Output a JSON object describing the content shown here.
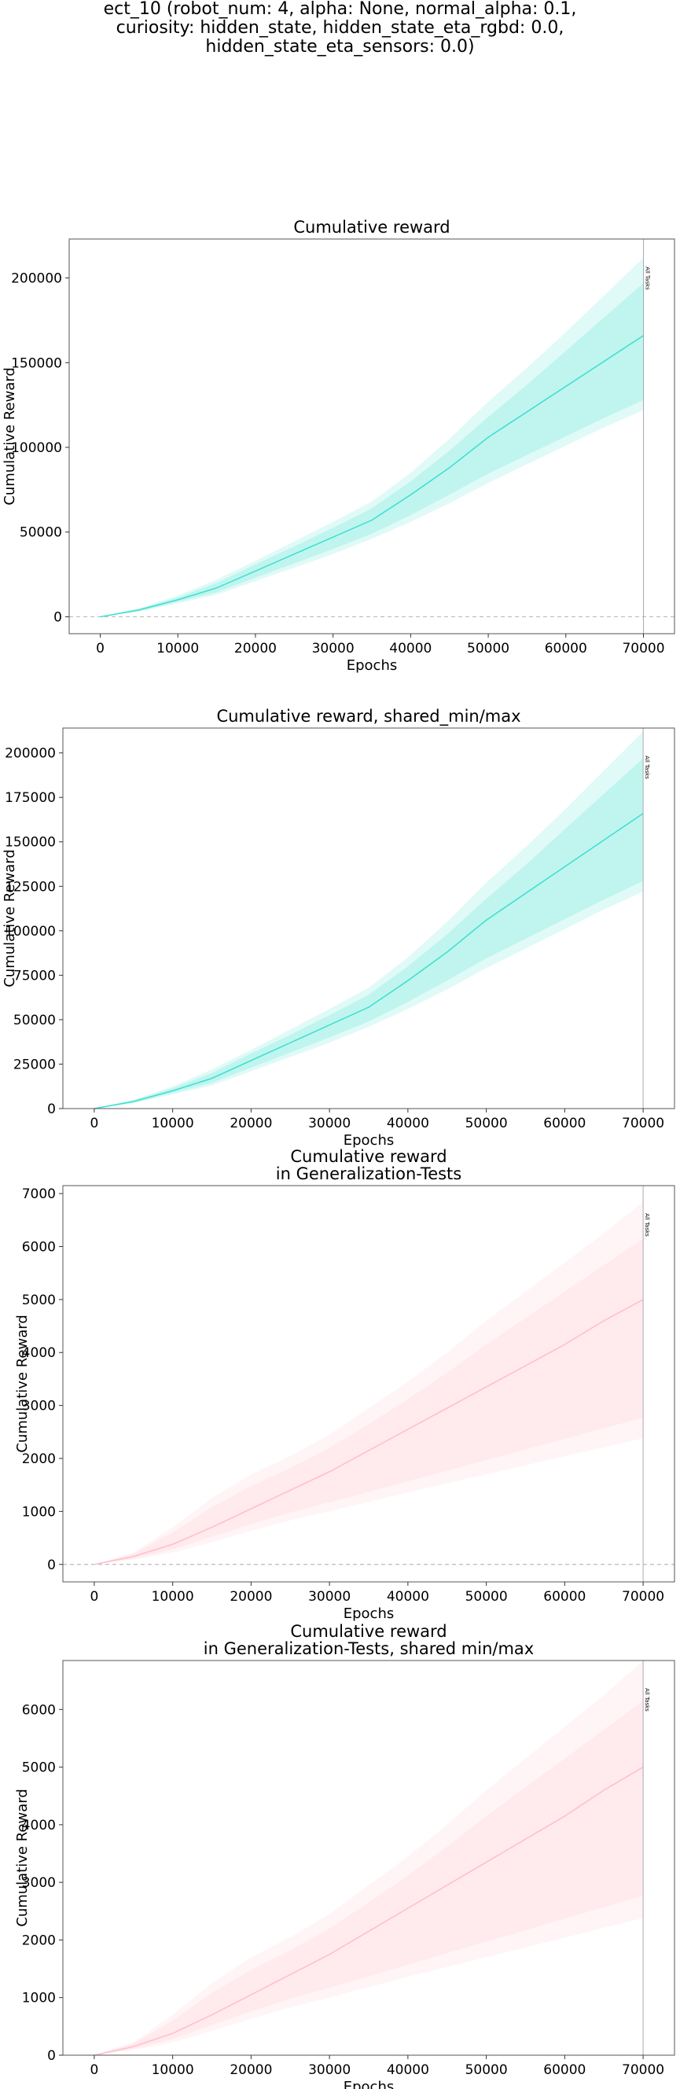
{
  "figure": {
    "suptitle_lines": [
      "ect_10 (robot_num: 4, alpha: None, normal_alpha: 0.1,",
      "curiosity: hidden_state, hidden_state_eta_rgbd: 0.0,",
      "hidden_state_eta_sensors: 0.0)"
    ]
  },
  "chart_data": [
    {
      "type": "line",
      "title": "Cumulative reward",
      "xlabel": "Epochs",
      "ylabel": "Cumulative Reward",
      "xlim": [
        -4000,
        74000
      ],
      "ylim": [
        -10000,
        223000
      ],
      "xticks": [
        0,
        10000,
        20000,
        30000,
        40000,
        50000,
        60000,
        70000
      ],
      "xtick_labels": [
        "0",
        "10000",
        "20000",
        "30000",
        "40000",
        "50000",
        "60000",
        "70000"
      ],
      "yticks": [
        0,
        50000,
        100000,
        150000,
        200000
      ],
      "ytick_labels": [
        "0",
        "50000",
        "100000",
        "150000",
        "200000"
      ],
      "zero_line": true,
      "vline": {
        "x": 70000,
        "label": "All Tasks"
      },
      "grid": false,
      "color": "#40e0d0",
      "series": [
        {
          "x": [
            0,
            5000,
            10000,
            15000,
            20000,
            25000,
            30000,
            35000,
            40000,
            45000,
            50000,
            55000,
            60000,
            65000,
            70000
          ],
          "mean": [
            0,
            4000,
            10000,
            17000,
            27000,
            37000,
            47000,
            57000,
            72000,
            88000,
            106000,
            121000,
            136000,
            151000,
            166000
          ],
          "outer_min": [
            0,
            3000,
            8000,
            13000,
            21000,
            29000,
            37000,
            46000,
            56000,
            67000,
            79000,
            90000,
            101000,
            112000,
            122000
          ],
          "outer_max": [
            0,
            5000,
            12500,
            22000,
            33000,
            44500,
            56000,
            68000,
            85000,
            105000,
            127000,
            147000,
            168000,
            190000,
            212000
          ],
          "inner_min": [
            0,
            3300,
            8800,
            14500,
            23000,
            31500,
            40000,
            49000,
            60000,
            72000,
            84500,
            95500,
            106500,
            117500,
            128000
          ],
          "inner_max": [
            0,
            4600,
            11500,
            20000,
            31000,
            41500,
            52500,
            64000,
            80000,
            98000,
            118000,
            137000,
            157000,
            177000,
            197000
          ]
        }
      ]
    },
    {
      "type": "line",
      "title": "Cumulative reward, shared_min/max",
      "xlabel": "Epochs",
      "ylabel": "Cumulative Reward",
      "xlim": [
        -4000,
        74000
      ],
      "ylim": [
        0,
        214000
      ],
      "xticks": [
        0,
        10000,
        20000,
        30000,
        40000,
        50000,
        60000,
        70000
      ],
      "xtick_labels": [
        "0",
        "10000",
        "20000",
        "30000",
        "40000",
        "50000",
        "60000",
        "70000"
      ],
      "yticks": [
        0,
        25000,
        50000,
        75000,
        100000,
        125000,
        150000,
        175000,
        200000
      ],
      "ytick_labels": [
        "0",
        "25000",
        "50000",
        "75000",
        "100000",
        "125000",
        "150000",
        "175000",
        "200000"
      ],
      "zero_line": false,
      "vline": {
        "x": 70000,
        "label": "All Tasks"
      },
      "grid": false,
      "color": "#40e0d0",
      "series": [
        {
          "x": [
            0,
            5000,
            10000,
            15000,
            20000,
            25000,
            30000,
            35000,
            40000,
            45000,
            50000,
            55000,
            60000,
            65000,
            70000
          ],
          "mean": [
            0,
            4000,
            10000,
            17000,
            27000,
            37000,
            47000,
            57000,
            72000,
            88000,
            106000,
            121000,
            136000,
            151000,
            166000
          ],
          "outer_min": [
            0,
            3000,
            8000,
            13000,
            21000,
            29000,
            37000,
            46000,
            56000,
            67000,
            79000,
            90000,
            101000,
            112000,
            122000
          ],
          "outer_max": [
            0,
            5000,
            12500,
            22000,
            33000,
            44500,
            56000,
            68000,
            85000,
            105000,
            127000,
            147000,
            168000,
            190000,
            212000
          ],
          "inner_min": [
            0,
            3300,
            8800,
            14500,
            23000,
            31500,
            40000,
            49000,
            60000,
            72000,
            84500,
            95500,
            106500,
            117500,
            128000
          ],
          "inner_max": [
            0,
            4600,
            11500,
            20000,
            31000,
            41500,
            52500,
            64000,
            80000,
            98000,
            118000,
            137000,
            157000,
            177000,
            197000
          ]
        }
      ]
    },
    {
      "type": "line",
      "title": "Cumulative reward\nin Generalization-Tests",
      "xlabel": "Epochs",
      "ylabel": "Cumulative Reward",
      "xlim": [
        -4000,
        74000
      ],
      "ylim": [
        -330,
        7150
      ],
      "xticks": [
        0,
        10000,
        20000,
        30000,
        40000,
        50000,
        60000,
        70000
      ],
      "xtick_labels": [
        "0",
        "10000",
        "20000",
        "30000",
        "40000",
        "50000",
        "60000",
        "70000"
      ],
      "yticks": [
        0,
        1000,
        2000,
        3000,
        4000,
        5000,
        6000,
        7000
      ],
      "ytick_labels": [
        "0",
        "1000",
        "2000",
        "3000",
        "4000",
        "5000",
        "6000",
        "7000"
      ],
      "zero_line": true,
      "vline": {
        "x": 70000,
        "label": "All Tasks"
      },
      "grid": false,
      "color": "#ffc0cb",
      "series": [
        {
          "x": [
            0,
            5000,
            10000,
            15000,
            20000,
            25000,
            30000,
            35000,
            40000,
            45000,
            50000,
            55000,
            60000,
            65000,
            70000
          ],
          "mean": [
            0,
            150,
            380,
            700,
            1050,
            1400,
            1750,
            2150,
            2550,
            2950,
            3350,
            3750,
            4150,
            4600,
            5000
          ],
          "outer_min": [
            0,
            90,
            220,
            420,
            630,
            830,
            1000,
            1180,
            1360,
            1530,
            1700,
            1870,
            2040,
            2210,
            2380
          ],
          "outer_max": [
            0,
            230,
            700,
            1250,
            1700,
            2050,
            2450,
            2950,
            3450,
            4000,
            4600,
            5150,
            5700,
            6250,
            6850
          ],
          "inner_min": [
            0,
            110,
            280,
            520,
            760,
            980,
            1170,
            1370,
            1570,
            1770,
            1970,
            2170,
            2370,
            2570,
            2770
          ],
          "inner_max": [
            0,
            200,
            600,
            1080,
            1480,
            1820,
            2200,
            2650,
            3120,
            3620,
            4150,
            4650,
            5150,
            5650,
            6150
          ]
        }
      ]
    },
    {
      "type": "line",
      "title": "Cumulative reward\nin Generalization-Tests, shared min/max",
      "xlabel": "Epochs",
      "ylabel": "Cumulative Reward",
      "xlim": [
        -4000,
        74000
      ],
      "ylim": [
        0,
        6850
      ],
      "xticks": [
        0,
        10000,
        20000,
        30000,
        40000,
        50000,
        60000,
        70000
      ],
      "xtick_labels": [
        "0",
        "10000",
        "20000",
        "30000",
        "40000",
        "50000",
        "60000",
        "70000"
      ],
      "yticks": [
        0,
        1000,
        2000,
        3000,
        4000,
        5000,
        6000
      ],
      "ytick_labels": [
        "0",
        "1000",
        "2000",
        "3000",
        "4000",
        "5000",
        "6000"
      ],
      "zero_line": false,
      "vline": {
        "x": 70000,
        "label": "All Tasks"
      },
      "grid": false,
      "color": "#ffc0cb",
      "series": [
        {
          "x": [
            0,
            5000,
            10000,
            15000,
            20000,
            25000,
            30000,
            35000,
            40000,
            45000,
            50000,
            55000,
            60000,
            65000,
            70000
          ],
          "mean": [
            0,
            150,
            380,
            700,
            1050,
            1400,
            1750,
            2150,
            2550,
            2950,
            3350,
            3750,
            4150,
            4600,
            5000
          ],
          "outer_min": [
            0,
            90,
            220,
            420,
            630,
            830,
            1000,
            1180,
            1360,
            1530,
            1700,
            1870,
            2040,
            2210,
            2380
          ],
          "outer_max": [
            0,
            230,
            700,
            1250,
            1700,
            2050,
            2450,
            2950,
            3450,
            4000,
            4600,
            5150,
            5700,
            6250,
            6850
          ],
          "inner_min": [
            0,
            110,
            280,
            520,
            760,
            980,
            1170,
            1370,
            1570,
            1770,
            1970,
            2170,
            2370,
            2570,
            2770
          ],
          "inner_max": [
            0,
            200,
            600,
            1080,
            1480,
            1820,
            2200,
            2650,
            3120,
            3620,
            4150,
            4650,
            5150,
            5650,
            6150
          ]
        }
      ]
    }
  ]
}
